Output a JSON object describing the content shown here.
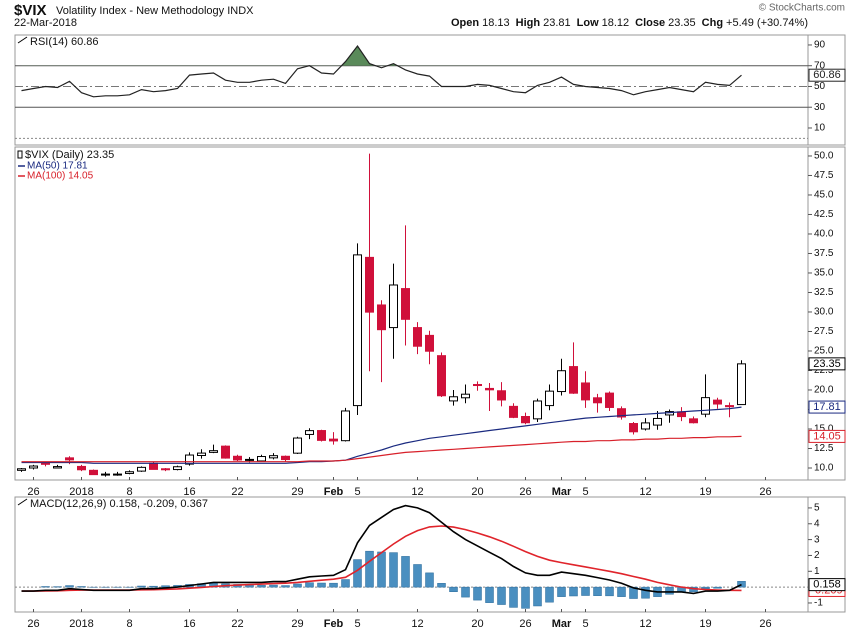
{
  "header": {
    "symbol": "$VIX",
    "name": "Volatility Index - New Methodology INDX",
    "date": "22-Mar-2018",
    "quote": [
      {
        "label": "Open",
        "value": "18.13"
      },
      {
        "label": "High",
        "value": "23.81"
      },
      {
        "label": "Low",
        "value": "18.12"
      },
      {
        "label": "Close",
        "value": "23.35"
      },
      {
        "label": "Chg",
        "value": "+5.49 (+30.74%)"
      }
    ],
    "credit": "© StockCharts.com"
  },
  "chart_data": [
    {
      "type": "line",
      "title": "RSI(14) 60.86",
      "ylim": [
        -6.4,
        99.6
      ],
      "yticks": [
        10,
        30,
        50,
        70,
        90
      ],
      "overbought": 70,
      "oversold": 30,
      "overbought_color": "#5a8a5a",
      "series": [
        {
          "color": "#222222",
          "last_value_tag": true,
          "values": [
            46,
            48,
            50,
            49,
            55,
            44,
            40,
            41,
            41,
            42,
            47,
            45,
            46,
            48,
            61,
            62,
            63,
            56,
            54,
            54,
            56,
            57,
            53,
            67,
            70,
            63,
            62,
            74,
            89,
            72,
            68,
            72,
            66,
            62,
            60,
            50,
            50,
            50,
            52,
            51,
            48,
            45,
            44,
            51,
            54,
            59,
            52,
            50,
            49,
            48,
            46,
            42,
            45,
            47,
            49,
            47,
            45,
            54,
            52,
            51,
            60.86,
            null,
            null
          ]
        }
      ]
    },
    {
      "type": "candlestick",
      "name": "$VIX (Daily) 23.35",
      "up_color": "#000000",
      "down_color": "#d0103a",
      "last_value_tag": true,
      "ylim": [
        8.46,
        51.15
      ],
      "yticks": [
        {
          "value": 10,
          "label": "10.0"
        },
        12.5,
        {
          "value": 15,
          "label": "15.0"
        },
        17.5,
        {
          "value": 20,
          "label": "20.0"
        },
        22.5,
        {
          "value": 25,
          "label": "25.0"
        },
        27.5,
        {
          "value": 30,
          "label": "30.0"
        },
        32.5,
        {
          "value": 35,
          "label": "35.0"
        },
        37.5,
        {
          "value": 40,
          "label": "40.0"
        },
        42.5,
        {
          "value": 45,
          "label": "45.0"
        },
        47.5,
        {
          "value": 50,
          "label": "50.0"
        }
      ],
      "categories": [
        null,
        "26",
        null,
        null,
        null,
        "2018",
        null,
        null,
        null,
        "8",
        null,
        null,
        null,
        null,
        "16",
        null,
        null,
        null,
        "22",
        null,
        null,
        null,
        null,
        "29",
        null,
        null,
        "Feb",
        null,
        "5",
        null,
        null,
        null,
        null,
        "12",
        null,
        null,
        null,
        null,
        "20",
        null,
        null,
        null,
        "26",
        null,
        null,
        "Mar",
        null,
        "5",
        null,
        null,
        null,
        null,
        "12",
        null,
        null,
        null,
        null,
        "19",
        null,
        null,
        null,
        null,
        "26"
      ],
      "open": [
        9.7,
        10.0,
        10.6,
        10.0,
        11.3,
        10.2,
        9.7,
        9.1,
        9.2,
        9.3,
        9.6,
        10.6,
        9.9,
        9.8,
        10.5,
        11.6,
        12.0,
        12.8,
        11.5,
        11.0,
        10.9,
        11.3,
        11.5,
        11.9,
        14.3,
        14.8,
        13.7,
        13.5,
        18.0,
        37.0,
        30.9,
        28.0,
        33.0,
        28.0,
        27.0,
        24.4,
        18.6,
        19.0,
        20.7,
        20.2,
        19.9,
        17.9,
        16.6,
        16.3,
        18.0,
        19.8,
        23.0,
        20.9,
        19.0,
        19.6,
        17.6,
        15.7,
        15.0,
        15.5,
        16.8,
        17.2,
        16.3,
        16.9,
        18.7,
        18.0,
        18.13,
        null,
        null
      ],
      "high": [
        10.0,
        10.4,
        10.7,
        10.4,
        11.5,
        10.4,
        9.8,
        9.5,
        9.5,
        9.7,
        10.2,
        10.8,
        10.0,
        10.3,
        12.0,
        12.4,
        13.0,
        12.9,
        11.7,
        11.4,
        11.7,
        11.9,
        11.6,
        14.0,
        15.1,
        14.9,
        14.6,
        17.7,
        38.8,
        50.3,
        31.5,
        36.2,
        41.1,
        28.7,
        27.6,
        24.8,
        20.0,
        20.7,
        21.1,
        20.9,
        21.0,
        18.3,
        17.1,
        18.9,
        20.7,
        24.0,
        26.1,
        22.4,
        19.5,
        19.8,
        17.9,
        15.9,
        16.4,
        17.3,
        17.5,
        17.8,
        16.6,
        22.0,
        19.0,
        18.4,
        23.81,
        null,
        null
      ],
      "low": [
        9.5,
        9.8,
        10.2,
        10.0,
        10.5,
        9.6,
        9.1,
        8.9,
        9.0,
        9.2,
        9.5,
        9.8,
        9.6,
        9.7,
        10.3,
        11.2,
        11.9,
        11.2,
        10.9,
        10.7,
        10.8,
        11.1,
        10.8,
        11.8,
        13.7,
        13.4,
        13.0,
        13.4,
        16.8,
        22.4,
        21.0,
        24.0,
        25.7,
        24.6,
        23.3,
        19.1,
        18.0,
        18.3,
        19.9,
        17.3,
        17.9,
        16.4,
        15.6,
        15.9,
        17.4,
        19.3,
        19.5,
        17.7,
        17.1,
        17.3,
        16.2,
        14.3,
        14.8,
        14.9,
        15.8,
        16.0,
        15.7,
        16.5,
        17.6,
        16.5,
        18.12,
        null,
        null
      ],
      "close": [
        9.9,
        10.25,
        10.47,
        10.18,
        11.04,
        9.77,
        9.15,
        9.22,
        9.22,
        9.52,
        10.08,
        9.82,
        9.88,
        10.16,
        11.66,
        11.91,
        12.22,
        11.27,
        11.03,
        11.1,
        11.47,
        11.58,
        11.08,
        13.84,
        14.79,
        13.54,
        13.47,
        17.31,
        37.32,
        29.98,
        27.73,
        33.46,
        29.06,
        25.61,
        24.97,
        19.26,
        19.13,
        19.46,
        20.6,
        20.02,
        18.72,
        16.49,
        15.8,
        18.59,
        19.85,
        22.47,
        19.59,
        18.73,
        18.36,
        17.76,
        16.54,
        14.64,
        15.78,
        16.35,
        17.23,
        16.59,
        15.8,
        19.02,
        18.2,
        17.86,
        23.35,
        null,
        null
      ],
      "series": [
        {
          "name": "MA(50) 17.81",
          "color": "#1a2a80",
          "last_value_tag": true,
          "values": [
            10.7,
            10.7,
            10.7,
            10.7,
            10.7,
            10.7,
            10.6,
            10.6,
            10.6,
            10.6,
            10.6,
            10.6,
            10.6,
            10.6,
            10.6,
            10.6,
            10.6,
            10.6,
            10.6,
            10.6,
            10.6,
            10.6,
            10.6,
            10.7,
            10.8,
            10.8,
            10.9,
            11.0,
            11.5,
            11.9,
            12.3,
            12.8,
            13.2,
            13.5,
            13.8,
            14.0,
            14.2,
            14.4,
            14.6,
            14.8,
            15.0,
            15.2,
            15.4,
            15.6,
            15.8,
            16.0,
            16.2,
            16.4,
            16.5,
            16.6,
            16.7,
            16.8,
            16.9,
            17.0,
            17.1,
            17.2,
            17.3,
            17.4,
            17.5,
            17.6,
            17.81,
            null,
            null
          ]
        },
        {
          "name": "MA(100) 14.05",
          "color": "#d8202a",
          "last_value_tag": true,
          "values": [
            10.8,
            10.8,
            10.8,
            10.8,
            10.8,
            10.8,
            10.8,
            10.8,
            10.8,
            10.8,
            10.8,
            10.8,
            10.8,
            10.8,
            10.8,
            10.8,
            10.8,
            10.8,
            10.8,
            10.8,
            10.8,
            10.8,
            10.8,
            10.8,
            10.9,
            10.9,
            10.9,
            11.0,
            11.2,
            11.4,
            11.6,
            11.8,
            12.0,
            12.1,
            12.2,
            12.3,
            12.4,
            12.5,
            12.6,
            12.7,
            12.8,
            12.9,
            13.0,
            13.1,
            13.2,
            13.3,
            13.4,
            13.4,
            13.5,
            13.5,
            13.6,
            13.6,
            13.7,
            13.7,
            13.8,
            13.8,
            13.9,
            13.9,
            14.0,
            14.0,
            14.05,
            null,
            null
          ]
        }
      ]
    },
    {
      "type": "line",
      "title": "MACD(12,26,9) 0.158, -0.209, 0.367",
      "ylim": [
        -1.57,
        5.69
      ],
      "yticks": [
        -1,
        1,
        2,
        3,
        4,
        5
      ],
      "categories": [
        null,
        "26",
        null,
        null,
        null,
        "2018",
        null,
        null,
        null,
        "8",
        null,
        null,
        null,
        null,
        "16",
        null,
        null,
        null,
        "22",
        null,
        null,
        null,
        null,
        "29",
        null,
        null,
        "Feb",
        null,
        "5",
        null,
        null,
        null,
        null,
        "12",
        null,
        null,
        null,
        null,
        "20",
        null,
        null,
        null,
        "26",
        null,
        null,
        "Mar",
        null,
        "5",
        null,
        null,
        null,
        null,
        "12",
        null,
        null,
        null,
        null,
        "19",
        null,
        null,
        null,
        null,
        "26"
      ],
      "series": [
        {
          "color": "#4a8fc0",
          "style": "bars",
          "values": [
            0,
            0,
            0.04,
            0.03,
            0.1,
            0.04,
            -0.01,
            -0.01,
            -0.01,
            -0.01,
            0.07,
            0.06,
            0.09,
            0.11,
            0.17,
            0.22,
            0.26,
            0.21,
            0.17,
            0.14,
            0.11,
            0.13,
            0.1,
            0.2,
            0.28,
            0.26,
            0.25,
            0.48,
            1.74,
            2.27,
            2.22,
            2.18,
            1.94,
            1.43,
            0.9,
            0.24,
            -0.29,
            -0.63,
            -0.82,
            -0.98,
            -1.1,
            -1.28,
            -1.34,
            -1.19,
            -0.95,
            -0.6,
            -0.56,
            -0.53,
            -0.54,
            -0.55,
            -0.6,
            -0.72,
            -0.7,
            -0.6,
            -0.45,
            -0.3,
            -0.3,
            -0.1,
            -0.07,
            0,
            0.367,
            null,
            null
          ]
        },
        {
          "color": "#e0242b",
          "last_value_tag": true,
          "values": [
            -0.25,
            -0.25,
            -0.24,
            -0.23,
            -0.2,
            -0.19,
            -0.19,
            -0.19,
            -0.19,
            -0.19,
            -0.17,
            -0.16,
            -0.14,
            -0.11,
            -0.07,
            -0.02,
            0.04,
            0.09,
            0.13,
            0.16,
            0.19,
            0.22,
            0.25,
            0.3,
            0.37,
            0.44,
            0.5,
            0.62,
            1.06,
            1.63,
            2.18,
            2.72,
            3.21,
            3.57,
            3.8,
            3.86,
            3.79,
            3.63,
            3.42,
            3.18,
            2.9,
            2.58,
            2.24,
            1.94,
            1.7,
            1.55,
            1.41,
            1.28,
            1.14,
            1,
            0.85,
            0.67,
            0.5,
            0.3,
            0.15,
            0,
            -0.1,
            -0.15,
            -0.18,
            -0.2,
            -0.209,
            null,
            null
          ]
        },
        {
          "color": "#000000",
          "last_value_tag": true,
          "values": [
            -0.25,
            -0.25,
            -0.2,
            -0.2,
            -0.1,
            -0.15,
            -0.2,
            -0.2,
            -0.2,
            -0.2,
            -0.1,
            -0.1,
            -0.05,
            0,
            0.1,
            0.2,
            0.3,
            0.3,
            0.3,
            0.3,
            0.3,
            0.35,
            0.35,
            0.5,
            0.65,
            0.7,
            0.75,
            1.1,
            2.8,
            3.9,
            4.4,
            4.9,
            5.15,
            5,
            4.7,
            4.1,
            3.5,
            3,
            2.6,
            2.2,
            1.8,
            1.3,
            0.9,
            0.75,
            0.75,
            0.95,
            0.85,
            0.75,
            0.6,
            0.45,
            0.25,
            -0.05,
            -0.2,
            -0.3,
            -0.3,
            -0.3,
            -0.4,
            -0.25,
            -0.25,
            -0.2,
            0.158,
            null,
            null
          ]
        }
      ]
    }
  ]
}
